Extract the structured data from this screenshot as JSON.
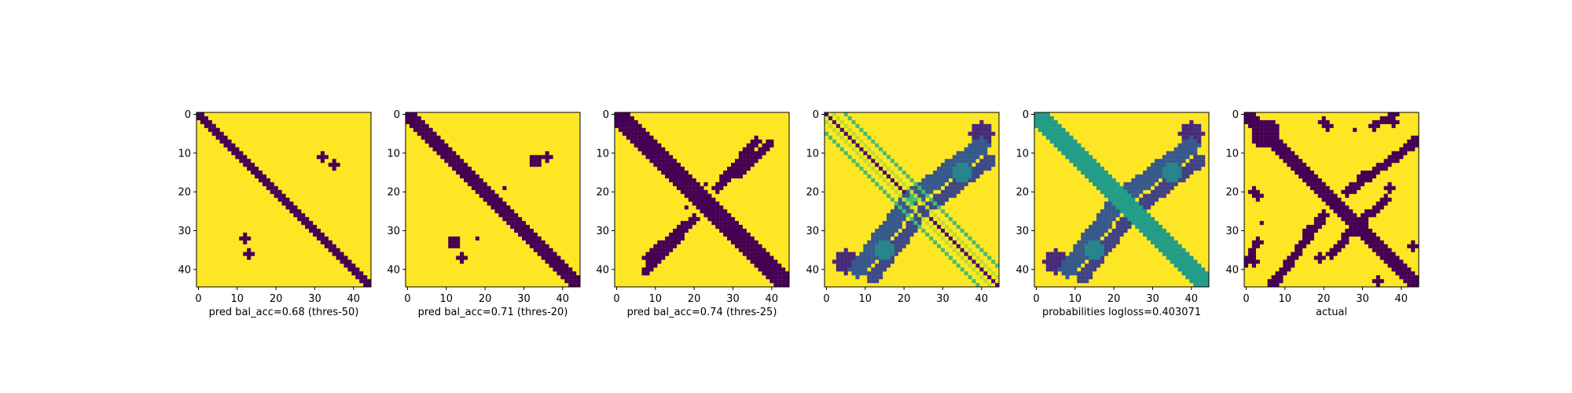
{
  "colors": {
    "low": "#440154",
    "high": "#fde725",
    "colormap": "viridis",
    "axis": "#000000",
    "background": "#ffffff"
  },
  "chart_data": [
    {
      "type": "heatmap",
      "title": "",
      "xlabel": "pred bal_acc=0.68 (thres-50)",
      "ylabel": "",
      "xlim": [
        -0.5,
        44.5
      ],
      "ylim": [
        44.5,
        -0.5
      ],
      "x_ticks": [
        0,
        10,
        20,
        30,
        40
      ],
      "y_ticks": [
        0,
        10,
        20,
        30,
        40
      ],
      "binary": true,
      "contact_bands": [
        {
          "from": [
            0,
            0
          ],
          "to": [
            44,
            44
          ],
          "half_width": 1.4,
          "value": 0
        }
      ],
      "contact_patches": [
        {
          "center": [
            32,
            11
          ],
          "radius": 1.2,
          "value": 0
        },
        {
          "center": [
            35,
            13
          ],
          "radius": 1.0,
          "value": 0
        },
        {
          "center": [
            12,
            32
          ],
          "radius": 1.2,
          "value": 0
        },
        {
          "center": [
            13,
            36
          ],
          "radius": 1.0,
          "value": 0
        }
      ]
    },
    {
      "type": "heatmap",
      "title": "",
      "xlabel": "pred bal_acc=0.71 (thres-20)",
      "ylabel": "",
      "xlim": [
        -0.5,
        44.5
      ],
      "ylim": [
        44.5,
        -0.5
      ],
      "x_ticks": [
        0,
        10,
        20,
        30,
        40
      ],
      "y_ticks": [
        0,
        10,
        20,
        30,
        40
      ],
      "binary": true,
      "contact_bands": [
        {
          "from": [
            0,
            0
          ],
          "to": [
            44,
            44
          ],
          "half_width": 1.6,
          "value": 0
        }
      ],
      "contact_patches": [
        {
          "center": [
            33,
            12
          ],
          "radius": 1.6,
          "value": 0
        },
        {
          "center": [
            36,
            11
          ],
          "radius": 1.0,
          "value": 0
        },
        {
          "center": [
            25,
            19
          ],
          "radius": 0.6,
          "value": 0
        },
        {
          "center": [
            12,
            33
          ],
          "radius": 1.6,
          "value": 0
        },
        {
          "center": [
            14,
            37
          ],
          "radius": 1.0,
          "value": 0
        },
        {
          "center": [
            18,
            32
          ],
          "radius": 0.6,
          "value": 0
        }
      ]
    },
    {
      "type": "heatmap",
      "title": "",
      "xlabel": "pred bal_acc=0.74 (thres-25)",
      "ylabel": "",
      "xlim": [
        -0.5,
        44.5
      ],
      "ylim": [
        44.5,
        -0.5
      ],
      "x_ticks": [
        0,
        10,
        20,
        30,
        40
      ],
      "y_ticks": [
        0,
        10,
        20,
        30,
        40
      ],
      "binary": true,
      "contact_bands": [
        {
          "from": [
            0,
            0
          ],
          "to": [
            44,
            44
          ],
          "half_width": 2.2,
          "value": 0
        },
        {
          "from": [
            26,
            19
          ],
          "to": [
            36,
            7
          ],
          "half_width": 1.2,
          "value": 0
        },
        {
          "from": [
            31,
            16
          ],
          "to": [
            40,
            7
          ],
          "half_width": 0.8,
          "value": 0
        },
        {
          "from": [
            20,
            27
          ],
          "to": [
            8,
            37
          ],
          "half_width": 1.2,
          "value": 0
        },
        {
          "from": [
            17,
            31
          ],
          "to": [
            7,
            41
          ],
          "half_width": 0.8,
          "value": 0
        }
      ],
      "contact_patches": [
        {
          "center": [
            23,
            18
          ],
          "radius": 0.9,
          "value": 0
        },
        {
          "center": [
            18,
            24
          ],
          "radius": 0.9,
          "value": 0
        }
      ]
    },
    {
      "type": "heatmap",
      "title": "",
      "xlabel": "",
      "ylabel": "",
      "xlim": [
        -0.5,
        44.5
      ],
      "ylim": [
        44.5,
        -0.5
      ],
      "x_ticks": [
        0,
        10,
        20,
        30,
        40
      ],
      "y_ticks": [
        0,
        10,
        20,
        30,
        40
      ],
      "binary": false,
      "contact_bands": [
        {
          "from": [
            0,
            0
          ],
          "to": [
            44,
            44
          ],
          "half_width": 0.5,
          "value": 0.95
        },
        {
          "from": [
            2,
            0
          ],
          "to": [
            44,
            42
          ],
          "half_width": 0.5,
          "value": 0.1
        },
        {
          "from": [
            0,
            2
          ],
          "to": [
            42,
            44
          ],
          "half_width": 0.5,
          "value": 0.1
        },
        {
          "from": [
            5,
            0
          ],
          "to": [
            44,
            39
          ],
          "half_width": 0.4,
          "value": 0.3
        },
        {
          "from": [
            0,
            5
          ],
          "to": [
            39,
            44
          ],
          "half_width": 0.4,
          "value": 0.3
        },
        {
          "from": [
            20,
            23
          ],
          "to": [
            40,
            8
          ],
          "half_width": 2.2,
          "value": 0.72
        },
        {
          "from": [
            23,
            20
          ],
          "to": [
            8,
            40
          ],
          "half_width": 2.2,
          "value": 0.72
        },
        {
          "from": [
            24,
            26
          ],
          "to": [
            42,
            12
          ],
          "half_width": 1.6,
          "value": 0.78
        },
        {
          "from": [
            26,
            24
          ],
          "to": [
            12,
            42
          ],
          "half_width": 1.6,
          "value": 0.78
        }
      ],
      "contact_patches": [
        {
          "center": [
            35,
            15
          ],
          "radius": 2.5,
          "value": 0.55
        },
        {
          "center": [
            15,
            35
          ],
          "radius": 2.5,
          "value": 0.55
        },
        {
          "center": [
            22,
            22
          ],
          "radius": 1.2,
          "value": 0.3
        },
        {
          "center": [
            5,
            38
          ],
          "radius": 3.0,
          "value": 0.88
        },
        {
          "center": [
            40,
            5
          ],
          "radius": 3.0,
          "value": 0.88
        }
      ]
    },
    {
      "type": "heatmap",
      "title": "",
      "xlabel": "probabilities logloss=0.403071",
      "ylabel": "",
      "xlim": [
        -0.5,
        44.5
      ],
      "ylim": [
        44.5,
        -0.5
      ],
      "x_ticks": [
        0,
        10,
        20,
        30,
        40
      ],
      "y_ticks": [
        0,
        10,
        20,
        30,
        40
      ],
      "binary": false,
      "contact_bands": [
        {
          "from": [
            0,
            0
          ],
          "to": [
            44,
            44
          ],
          "half_width": 1.0,
          "value": 0.98
        },
        {
          "from": [
            0,
            0
          ],
          "to": [
            44,
            44
          ],
          "half_width": 2.2,
          "value": 0.45
        },
        {
          "from": [
            20,
            23
          ],
          "to": [
            40,
            8
          ],
          "half_width": 2.2,
          "value": 0.72
        },
        {
          "from": [
            23,
            20
          ],
          "to": [
            8,
            40
          ],
          "half_width": 2.2,
          "value": 0.72
        },
        {
          "from": [
            24,
            26
          ],
          "to": [
            42,
            12
          ],
          "half_width": 1.6,
          "value": 0.8
        },
        {
          "from": [
            26,
            24
          ],
          "to": [
            12,
            42
          ],
          "half_width": 1.6,
          "value": 0.8
        }
      ],
      "contact_patches": [
        {
          "center": [
            35,
            15
          ],
          "radius": 2.5,
          "value": 0.55
        },
        {
          "center": [
            15,
            35
          ],
          "radius": 2.5,
          "value": 0.55
        },
        {
          "center": [
            5,
            38
          ],
          "radius": 3.0,
          "value": 0.88
        },
        {
          "center": [
            40,
            5
          ],
          "radius": 3.0,
          "value": 0.88
        }
      ]
    },
    {
      "type": "heatmap",
      "title": "",
      "xlabel": "actual",
      "ylabel": "",
      "xlim": [
        -0.5,
        44.5
      ],
      "ylim": [
        44.5,
        -0.5
      ],
      "x_ticks": [
        0,
        10,
        20,
        30,
        40
      ],
      "y_ticks": [
        0,
        10,
        20,
        30,
        40
      ],
      "binary": true,
      "contact_bands": [
        {
          "from": [
            0,
            0
          ],
          "to": [
            44,
            44
          ],
          "half_width": 1.8,
          "value": 0
        },
        {
          "from": [
            26,
            20
          ],
          "to": [
            44,
            7
          ],
          "half_width": 1.2,
          "value": 0
        },
        {
          "from": [
            20,
            26
          ],
          "to": [
            7,
            44
          ],
          "half_width": 1.2,
          "value": 0
        },
        {
          "from": [
            26,
            31
          ],
          "to": [
            36,
            22
          ],
          "half_width": 1.0,
          "value": 0
        },
        {
          "from": [
            31,
            26
          ],
          "to": [
            22,
            36
          ],
          "half_width": 1.0,
          "value": 0
        },
        {
          "from": [
            33,
            3
          ],
          "to": [
            38,
            0
          ],
          "half_width": 1.0,
          "value": 0
        },
        {
          "from": [
            3,
            33
          ],
          "to": [
            0,
            38
          ],
          "half_width": 1.0,
          "value": 0
        }
      ],
      "contact_patches": [
        {
          "center": [
            6,
            4
          ],
          "radius": 2.8,
          "value": 0
        },
        {
          "center": [
            4,
            6
          ],
          "radius": 2.8,
          "value": 0
        },
        {
          "center": [
            29,
            29
          ],
          "radius": 2.4,
          "value": 0
        },
        {
          "center": [
            33,
            33
          ],
          "radius": 2.2,
          "value": 0
        },
        {
          "center": [
            2,
            20
          ],
          "radius": 1.2,
          "value": 0
        },
        {
          "center": [
            20,
            2
          ],
          "radius": 1.2,
          "value": 0
        },
        {
          "center": [
            21,
            3
          ],
          "radius": 1.0,
          "value": 0
        },
        {
          "center": [
            3,
            21
          ],
          "radius": 1.0,
          "value": 0
        },
        {
          "center": [
            43,
            7
          ],
          "radius": 1.4,
          "value": 0
        },
        {
          "center": [
            7,
            43
          ],
          "radius": 1.4,
          "value": 0
        },
        {
          "center": [
            37,
            19
          ],
          "radius": 1.0,
          "value": 0
        },
        {
          "center": [
            19,
            37
          ],
          "radius": 1.0,
          "value": 0
        },
        {
          "center": [
            16,
            30
          ],
          "radius": 1.4,
          "value": 0
        },
        {
          "center": [
            30,
            16
          ],
          "radius": 1.4,
          "value": 0
        },
        {
          "center": [
            2,
            38
          ],
          "radius": 1.2,
          "value": 0
        },
        {
          "center": [
            38,
            2
          ],
          "radius": 1.2,
          "value": 0
        },
        {
          "center": [
            34,
            43
          ],
          "radius": 1.0,
          "value": 0
        },
        {
          "center": [
            43,
            34
          ],
          "radius": 1.0,
          "value": 0
        },
        {
          "center": [
            28,
            4
          ],
          "radius": 0.8,
          "value": 0
        },
        {
          "center": [
            4,
            28
          ],
          "radius": 0.8,
          "value": 0
        }
      ]
    }
  ]
}
